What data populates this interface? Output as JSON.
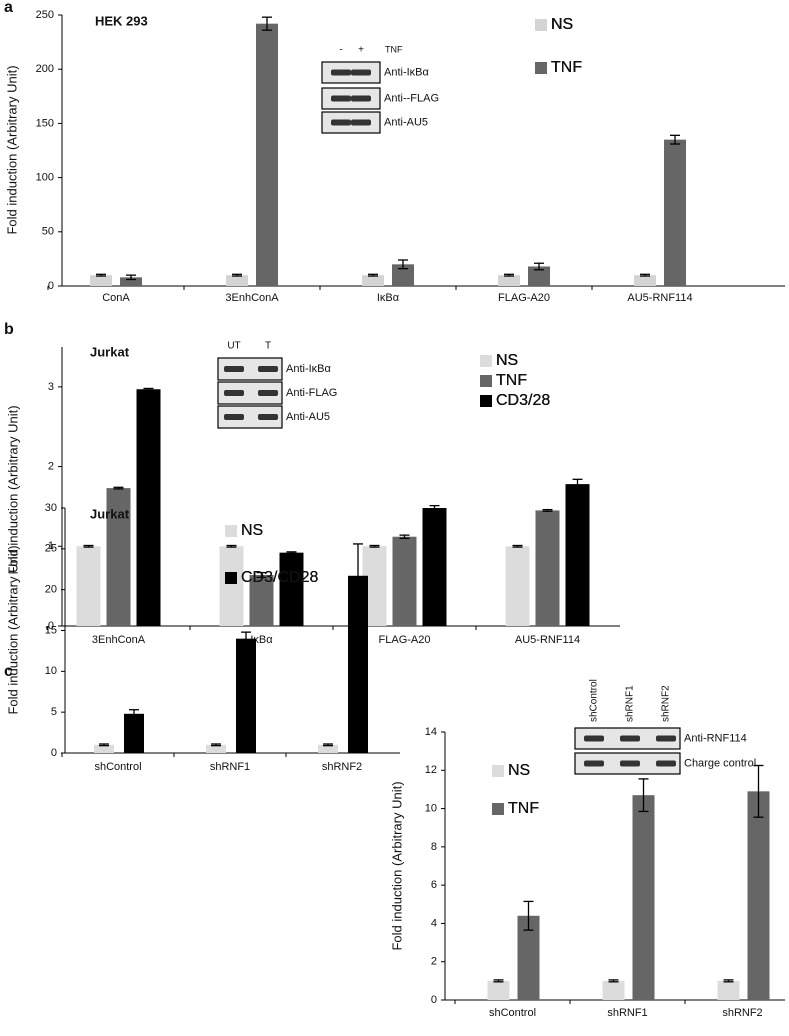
{
  "chart_data": [
    {
      "type": "bar",
      "panel_label": "a",
      "title": "HEK 293",
      "y_label": "Fold induction (Arbitrary Unit)",
      "categories": [
        "ConA",
        "3EnhConA",
        "IκBα",
        "FLAG-A20",
        "AU5-RNF114"
      ],
      "series": [
        {
          "name": "NS",
          "color": "#d4d4d4",
          "values": [
            10,
            10,
            10,
            10,
            10
          ],
          "errors": [
            0.8,
            0.8,
            0.8,
            0.8,
            0.8
          ]
        },
        {
          "name": "TNF",
          "color": "#666666",
          "values": [
            8,
            242,
            20,
            18,
            135
          ],
          "errors": [
            2,
            6,
            4,
            3,
            4
          ]
        }
      ],
      "ylim": [
        0,
        250
      ],
      "yticks": [
        0,
        50,
        100,
        150,
        200,
        250
      ],
      "inset": {
        "lanes": [
          "-",
          "+"
        ],
        "lane_label": "TNF",
        "rows": [
          "Anti-IκBα",
          "Anti--FLAG",
          "Anti-AU5"
        ]
      }
    },
    {
      "type": "bar",
      "panel_label": "b",
      "title": "Jurkat",
      "y_label": "Fold induction (Arbitrary Unit)",
      "categories": [
        "3EnhConA",
        "IκBα",
        "FLAG-A20",
        "AU5-RNF114"
      ],
      "series": [
        {
          "name": "NS",
          "color": "#dcdcdc",
          "values": [
            1,
            1,
            1,
            1
          ],
          "errors": [
            0.01,
            0.01,
            0.01,
            0.01
          ]
        },
        {
          "name": "TNF",
          "color": "#666666",
          "values": [
            1.73,
            0.64,
            1.12,
            1.45
          ],
          "errors": [
            0.01,
            0.03,
            0.02,
            0.01
          ]
        },
        {
          "name": "CD3/28",
          "color": "#000000",
          "values": [
            2.97,
            0.92,
            1.48,
            1.78
          ],
          "errors": [
            0.01,
            0.01,
            0.03,
            0.06
          ]
        }
      ],
      "ylim": [
        0,
        3.5
      ],
      "yticks": [
        0,
        1,
        2,
        3
      ],
      "inset": {
        "lanes": [
          "UT",
          "T"
        ],
        "rows": [
          "Anti-IκBα",
          "Anti-FLAG",
          "Anti-AU5"
        ]
      }
    },
    {
      "type": "bar",
      "panel_label": "c",
      "title": "Jurkat",
      "y_label": "Fold induction (Arbitrary Unit)",
      "categories": [
        "shControl",
        "shRNF1",
        "shRNF2"
      ],
      "series": [
        {
          "name": "NS",
          "color": "#dcdcdc",
          "values": [
            1,
            1,
            1
          ],
          "errors": [
            0.1,
            0.1,
            0.1
          ]
        },
        {
          "name": "CD3/CD28",
          "color": "#000000",
          "values": [
            4.8,
            14,
            21.7
          ],
          "errors": [
            0.5,
            0.8,
            3.9
          ]
        }
      ],
      "ylim": [
        0,
        30
      ],
      "yticks": [
        0,
        5,
        10,
        15,
        20,
        25,
        30
      ]
    },
    {
      "type": "bar",
      "y_label": "Fold induction (Arbitrary Unit)",
      "categories": [
        "shControl",
        "shRNF1",
        "shRNF2"
      ],
      "series": [
        {
          "name": "NS",
          "color": "#dcdcdc",
          "values": [
            1,
            1,
            1
          ],
          "errors": [
            0.05,
            0.05,
            0.05
          ]
        },
        {
          "name": "TNF",
          "color": "#666666",
          "values": [
            4.4,
            10.7,
            10.9
          ],
          "errors": [
            0.75,
            0.85,
            1.35
          ]
        }
      ],
      "ylim": [
        0,
        14
      ],
      "yticks": [
        0,
        2,
        4,
        6,
        8,
        10,
        12,
        14
      ],
      "inset": {
        "lanes": [
          "shControl",
          "shRNF1",
          "shRNF2"
        ],
        "rows": [
          "Anti-RNF114",
          "Charge control"
        ]
      }
    }
  ]
}
